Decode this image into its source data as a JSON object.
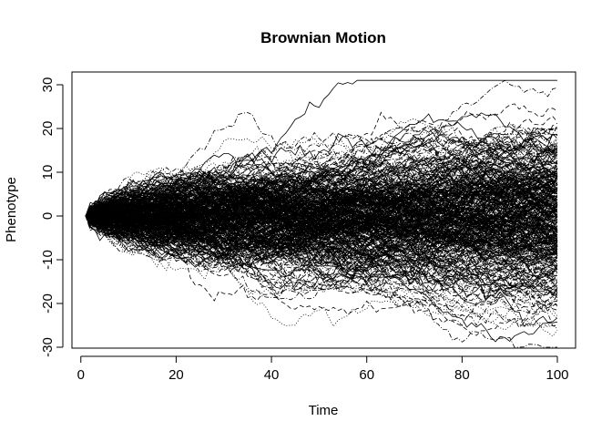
{
  "chart_data": {
    "type": "line",
    "title": "Brownian Motion",
    "xlabel": "Time",
    "ylabel": "Phenotype",
    "xlim": [
      1,
      100
    ],
    "ylim": [
      -30,
      30
    ],
    "x_ticks": [
      0,
      20,
      40,
      60,
      80,
      100
    ],
    "y_ticks": [
      -30,
      -20,
      -10,
      0,
      10,
      20,
      30
    ],
    "x_tick_labels": [
      "0",
      "20",
      "40",
      "60",
      "80",
      "100"
    ],
    "y_tick_labels": [
      "-30",
      "-20",
      "-10",
      "0",
      "10",
      "20",
      "30"
    ],
    "series_count": 400,
    "start_value": 0,
    "step_sd": 1,
    "line_color": "#000000",
    "line_styles": [
      "solid",
      "dashed",
      "dotted",
      "dashdot"
    ],
    "grid": false,
    "legend": "none"
  }
}
